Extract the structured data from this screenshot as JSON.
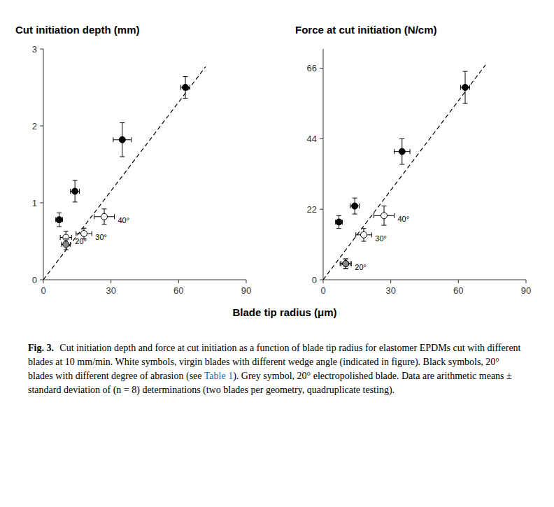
{
  "chart_data": [
    {
      "type": "scatter",
      "title": "Cut initiation depth (mm)",
      "xlabel": "Blade tip radius (μm)",
      "xlim": [
        0,
        90
      ],
      "xticks": [
        0,
        30,
        60,
        90
      ],
      "ylim": [
        0,
        3.0
      ],
      "yticks": [
        0,
        1,
        2,
        3
      ],
      "grid": false,
      "series": [
        {
          "type": "line",
          "line_style": "dashed",
          "color": "#000000",
          "x": [
            0,
            72
          ],
          "values": [
            0,
            2.77
          ]
        },
        {
          "type": "scatter",
          "marker": "circle",
          "color": "#000000",
          "x": [
            7,
            14,
            35,
            63
          ],
          "values": [
            0.78,
            1.15,
            1.82,
            2.5
          ],
          "xerr": [
            1.5,
            2.0,
            4.0,
            2.0
          ],
          "yerr": [
            0.09,
            0.14,
            0.22,
            0.14
          ]
        },
        {
          "type": "scatter",
          "marker": "circle",
          "color": "#ffffff",
          "x": [
            10,
            18,
            27
          ],
          "values": [
            0.55,
            0.6,
            0.82
          ],
          "xerr": [
            2.5,
            3.5,
            4.5
          ],
          "yerr": [
            0.08,
            0.07,
            0.1
          ],
          "point_labels": [
            "20°",
            "30°",
            "40°"
          ]
        },
        {
          "type": "scatter",
          "marker": "circle",
          "color": "#888888",
          "x": [
            10
          ],
          "values": [
            0.46
          ],
          "xerr": [
            2.0
          ],
          "yerr": [
            0.07
          ]
        }
      ],
      "caption": {
        "label": "Fig. 3.",
        "segments": [
          {
            "text": "Cut initiation depth and force at cut initiation as a function of blade tip radius for elastomer EPDMs cut with different blades at 10 mm/min. White symbols, virgin blades with different wedge angle (indicated in figure). Black symbols, 20° blades with different degree of abrasion (see ",
            "color": "#000000"
          },
          {
            "text": "Table 1",
            "color": "#1a6db5"
          },
          {
            "text": "). Grey symbol, 20° electropolished blade. Data are arithmetic means ± standard deviation of (n = 8) determinations (two blades per geometry, quadruplicate testing).",
            "color": "#000000"
          }
        ]
      }
    },
    {
      "type": "scatter",
      "title": "Force at cut initiation (N/cm)",
      "xlim": [
        0,
        90
      ],
      "xticks": [
        0,
        30,
        60,
        90
      ],
      "ylim": [
        0,
        72
      ],
      "yticks": [
        0,
        22,
        44,
        66
      ],
      "grid": false,
      "series": [
        {
          "type": "line",
          "line_style": "dashed",
          "color": "#000000",
          "x": [
            0,
            72
          ],
          "values": [
            0,
            67
          ]
        },
        {
          "type": "scatter",
          "marker": "circle",
          "color": "#000000",
          "x": [
            7,
            14,
            35,
            63
          ],
          "values": [
            18,
            23,
            40,
            60
          ],
          "xerr": [
            1.5,
            2.0,
            3.5,
            2.0
          ],
          "yerr": [
            2.0,
            2.5,
            4.0,
            5.0
          ]
        },
        {
          "type": "scatter",
          "marker": "circle",
          "color": "#ffffff",
          "x": [
            10,
            18,
            27
          ],
          "values": [
            5,
            14,
            20
          ],
          "xerr": [
            2.5,
            3.5,
            4.5
          ],
          "yerr": [
            1.5,
            2.0,
            3.0
          ],
          "point_labels": [
            "20°",
            "30°",
            "40°"
          ]
        },
        {
          "type": "scatter",
          "marker": "circle",
          "color": "#888888",
          "x": [
            10
          ],
          "values": [
            5
          ],
          "xerr": [
            2.0
          ],
          "yerr": [
            1.5
          ]
        }
      ]
    }
  ]
}
